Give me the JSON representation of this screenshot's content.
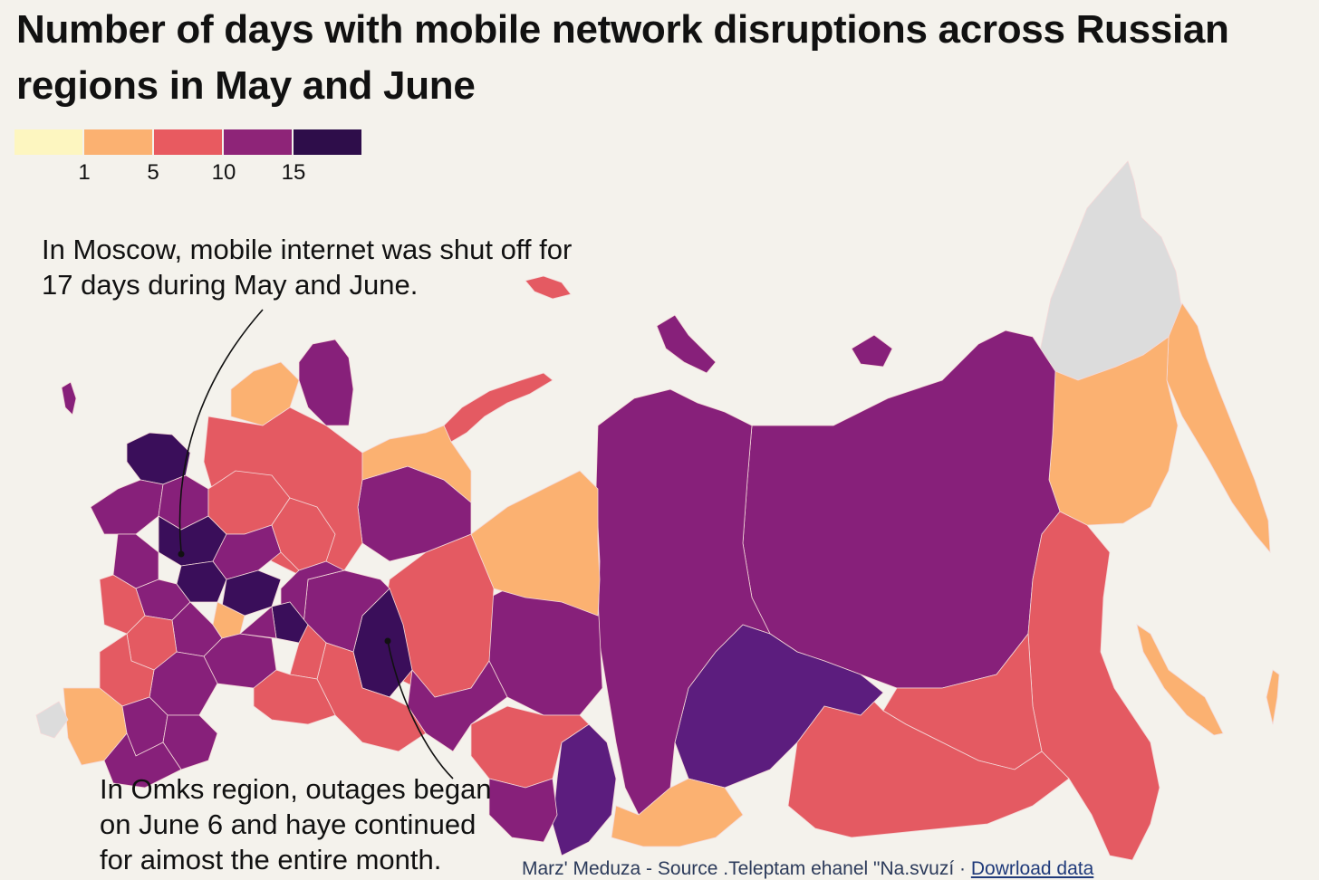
{
  "title": "Number of days with mobile network disruptions across Russian regions in May and June",
  "legend": {
    "colors": [
      "#fdf6c0",
      "#fbb171",
      "#e85a60",
      "#8e2478",
      "#2e0d4a"
    ],
    "ticks": [
      "1",
      "5",
      "10",
      "15"
    ]
  },
  "map": {
    "colors": {
      "no_data": "#dcdcdc",
      "c1": "#fbb171",
      "c5": "#e45a62",
      "c10": "#87207a",
      "c10b": "#5c1d7e",
      "c15": "#3a0e5a",
      "border": "#f4d8d8"
    }
  },
  "annotations": {
    "moscow": "In Moscow, mobile internet was shut off for 17 days during May and June.",
    "omsk": "In Omks region, outages began on June 6 and haye continued for aimost the entire month."
  },
  "footer": {
    "credit": "Marz' Meduza - Source .Teleptam ehanel \"Na.svuzí · ",
    "link": "Dowrload data"
  }
}
